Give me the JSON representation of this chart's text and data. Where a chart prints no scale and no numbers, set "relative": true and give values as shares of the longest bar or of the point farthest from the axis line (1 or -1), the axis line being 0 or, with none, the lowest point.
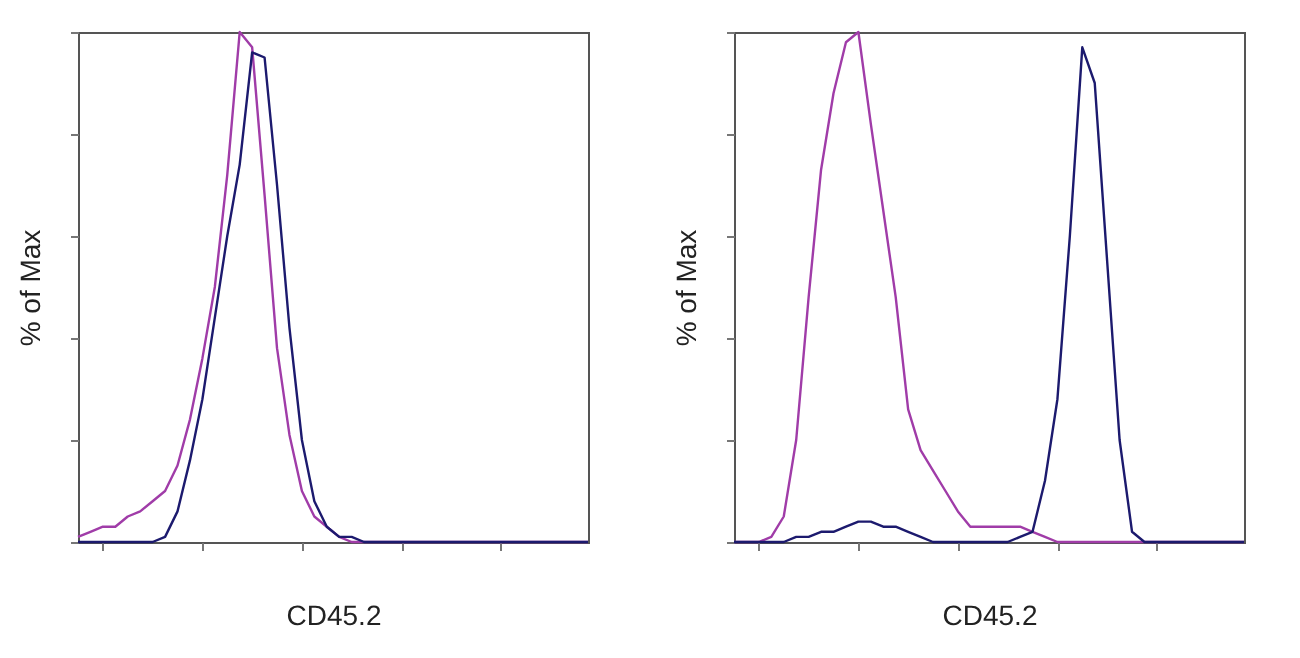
{
  "chart_data": [
    {
      "type": "line",
      "xlabel": "CD45.2",
      "ylabel": "% of Max",
      "relative": true,
      "categories": [
        null,
        null,
        null,
        null,
        null,
        null,
        null,
        null,
        null,
        null,
        null,
        null,
        null,
        null,
        null,
        null,
        null,
        null,
        null,
        null,
        null,
        null,
        null,
        null,
        null,
        null,
        null,
        null,
        null,
        null,
        null,
        null,
        null,
        null,
        null,
        null,
        null,
        null,
        null,
        null,
        null,
        null
      ],
      "series": [
        {
          "color": "#a03ca8",
          "values": [
            0.01,
            0.02,
            0.03,
            0.03,
            0.05,
            0.06,
            0.08,
            0.1,
            0.15,
            0.24,
            0.36,
            0.5,
            0.72,
            1.0,
            0.97,
            0.68,
            0.38,
            0.21,
            0.1,
            0.05,
            0.03,
            0.01,
            0,
            0,
            0,
            0,
            0,
            0,
            0,
            0,
            0,
            0,
            0,
            0,
            0,
            0,
            0,
            0,
            0,
            0,
            0,
            0
          ]
        },
        {
          "color": "#1c1a6e",
          "values": [
            0,
            0,
            0,
            0,
            0,
            0,
            0,
            0.01,
            0.06,
            0.16,
            0.28,
            0.44,
            0.6,
            0.74,
            0.96,
            0.95,
            0.7,
            0.42,
            0.2,
            0.08,
            0.03,
            0.01,
            0.01,
            0,
            0,
            0,
            0,
            0,
            0,
            0,
            0,
            0,
            0,
            0,
            0,
            0,
            0,
            0,
            0,
            0,
            0,
            0
          ]
        }
      ]
    },
    {
      "type": "line",
      "xlabel": "CD45.2",
      "ylabel": "% of Max",
      "relative": true,
      "categories": [
        null,
        null,
        null,
        null,
        null,
        null,
        null,
        null,
        null,
        null,
        null,
        null,
        null,
        null,
        null,
        null,
        null,
        null,
        null,
        null,
        null,
        null,
        null,
        null,
        null,
        null,
        null,
        null,
        null,
        null,
        null,
        null,
        null,
        null,
        null,
        null,
        null,
        null,
        null,
        null,
        null,
        null
      ],
      "series": [
        {
          "color": "#a03ca8",
          "values": [
            0,
            0,
            0,
            0.01,
            0.05,
            0.2,
            0.48,
            0.73,
            0.88,
            0.98,
            1.0,
            0.82,
            0.65,
            0.48,
            0.26,
            0.18,
            0.14,
            0.1,
            0.06,
            0.03,
            0.03,
            0.03,
            0.03,
            0.03,
            0.02,
            0.01,
            0,
            0,
            0,
            0,
            0,
            0,
            0,
            0,
            0,
            0,
            0,
            0,
            0,
            0,
            0,
            0
          ]
        },
        {
          "color": "#1c1a6e",
          "values": [
            0,
            0,
            0,
            0,
            0,
            0.01,
            0.01,
            0.02,
            0.02,
            0.03,
            0.04,
            0.04,
            0.03,
            0.03,
            0.02,
            0.01,
            0,
            0,
            0,
            0,
            0,
            0,
            0,
            0.01,
            0.02,
            0.12,
            0.28,
            0.6,
            0.97,
            0.9,
            0.55,
            0.2,
            0.02,
            0,
            0,
            0,
            0,
            0,
            0,
            0,
            0,
            0
          ]
        }
      ]
    }
  ]
}
